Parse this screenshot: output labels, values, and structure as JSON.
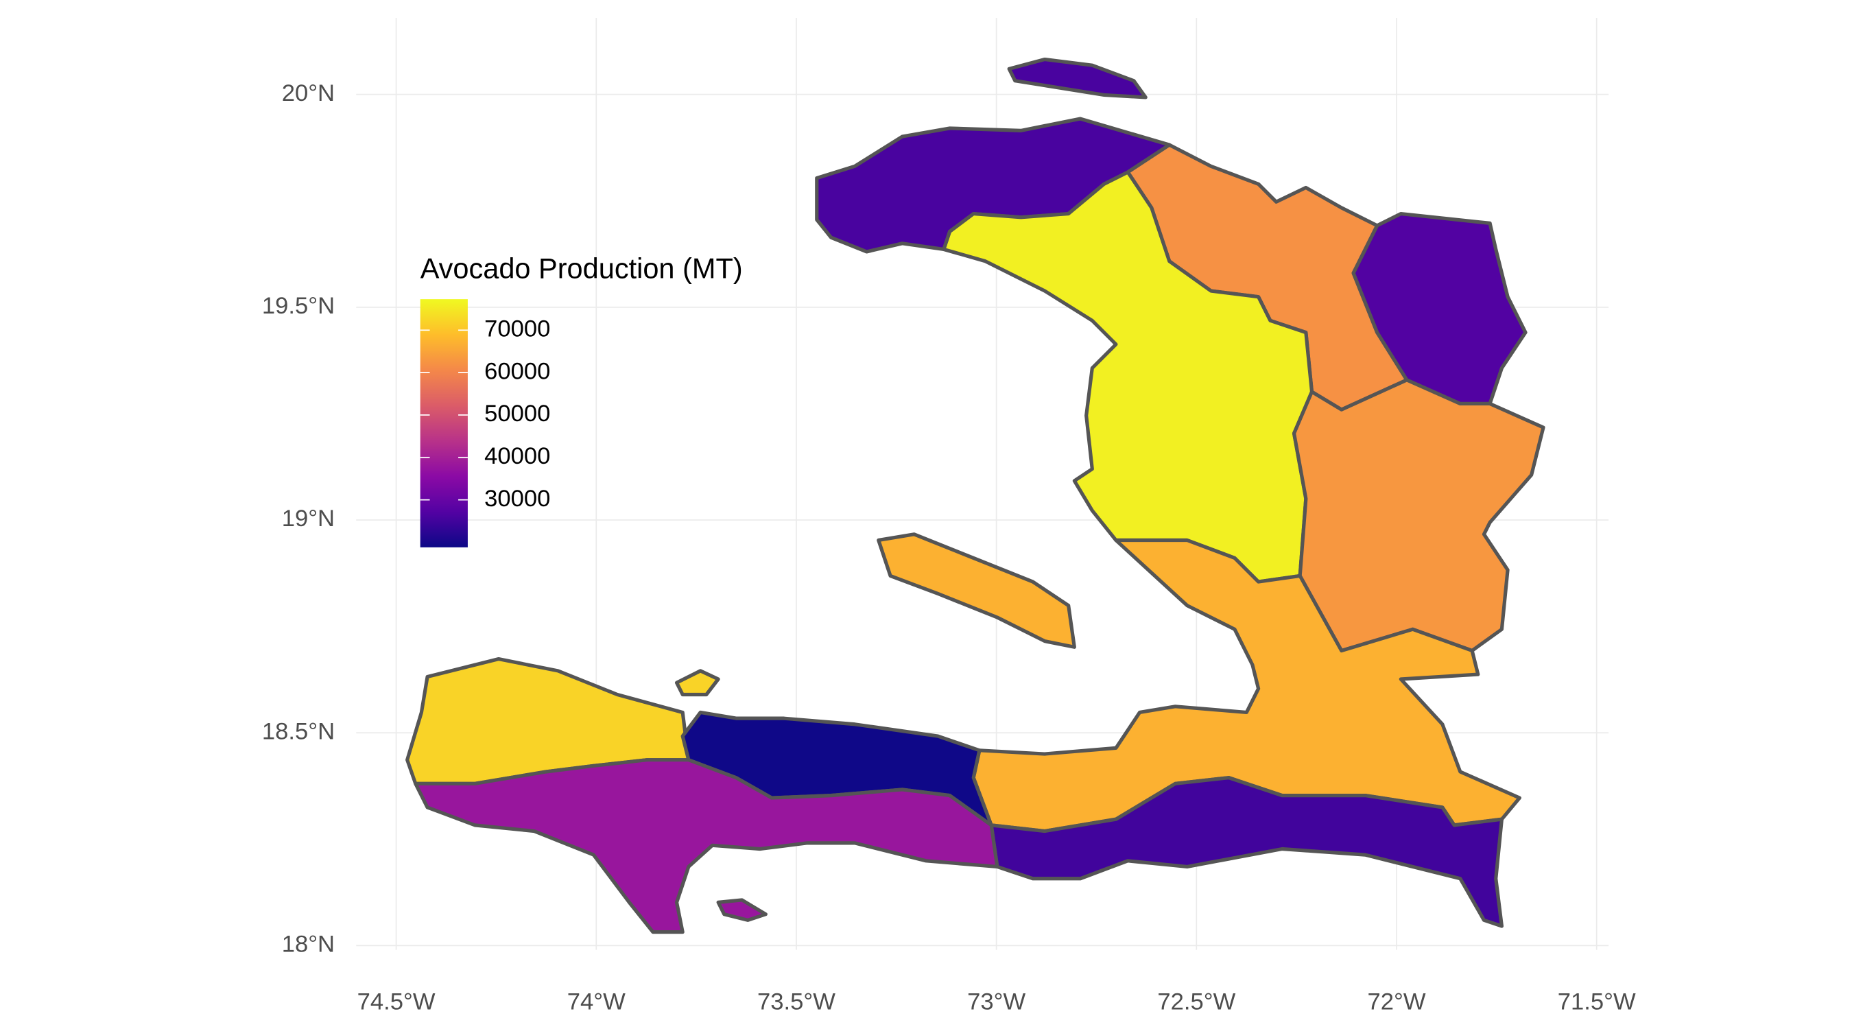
{
  "chart_data": {
    "type": "choropleth",
    "legend_title": "Avocado Production (MT)",
    "values": [
      26000,
      62000,
      27000,
      76000,
      63000,
      67000,
      72000,
      19000,
      38000,
      25000
    ],
    "colorscale": [
      "#0d0887",
      "#5302a3",
      "#8b0aa5",
      "#b83289",
      "#db5c68",
      "#f48849",
      "#febd2a",
      "#f0f921"
    ],
    "legend_lim": [
      18800,
      77300
    ],
    "legend_ticks": [
      30000,
      40000,
      50000,
      60000,
      70000
    ],
    "xlim": [
      -74.6,
      -71.47
    ],
    "ylim": [
      17.99,
      20.18
    ],
    "xticks": [
      {
        "value": -74.5,
        "label": "74.5°W"
      },
      {
        "value": -74,
        "label": "74°W"
      },
      {
        "value": -73.5,
        "label": "73.5°W"
      },
      {
        "value": -73,
        "label": "73°W"
      },
      {
        "value": -72.5,
        "label": "72.5°W"
      },
      {
        "value": -72,
        "label": "72°W"
      },
      {
        "value": -71.5,
        "label": "71.5°W"
      }
    ],
    "yticks": [
      {
        "value": 18,
        "label": "18°N"
      },
      {
        "value": 18.5,
        "label": "18.5°N"
      },
      {
        "value": 19,
        "label": "19°N"
      },
      {
        "value": 19.5,
        "label": "19.5°N"
      },
      {
        "value": 20,
        "label": "20°N"
      }
    ],
    "grid": true
  }
}
